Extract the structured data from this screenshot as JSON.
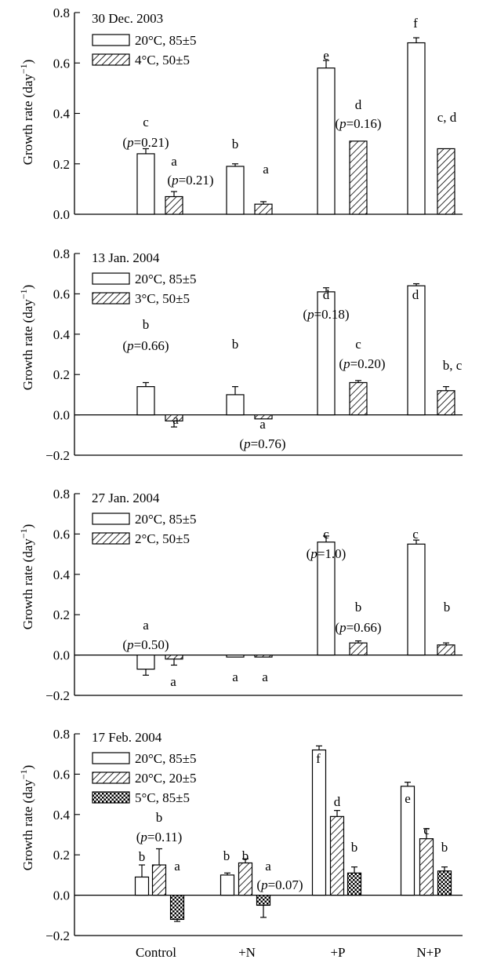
{
  "chart_data": [
    {
      "type": "bar",
      "title": "30 Dec. 2003",
      "ylabel": "Growth rate (day",
      "ylabel_sup": "−1",
      "ylabel_close": ")",
      "ylim": [
        0.0,
        0.8
      ],
      "yticks": [
        0.0,
        0.2,
        0.4,
        0.6,
        0.8
      ],
      "ytick_labels": [
        "0.0",
        "0.2",
        "0.4",
        "0.6",
        "0.8"
      ],
      "categories": [
        "Control",
        "+N",
        "+P",
        "N+P"
      ],
      "series": [
        {
          "name": "20°C, 85±5",
          "pattern": "open",
          "values": [
            0.24,
            0.19,
            0.58,
            0.68
          ],
          "errors": [
            0.02,
            0.01,
            0.03,
            0.02
          ],
          "letters": [
            "c",
            "b",
            "e",
            "f"
          ]
        },
        {
          "name": "4°C, 50±5",
          "pattern": "hatch",
          "values": [
            0.07,
            0.04,
            0.29,
            0.26
          ],
          "errors": [
            0.02,
            0.01,
            0.0,
            0.0
          ],
          "letters": [
            "a",
            "a",
            "d",
            "c, d"
          ]
        }
      ],
      "p_values": [
        "(p=0.21)",
        "(p=0.21)",
        "(p=0.16)"
      ]
    },
    {
      "type": "bar",
      "title": "13 Jan. 2004",
      "ylabel": "Growth rate (day",
      "ylabel_sup": "−1",
      "ylabel_close": ")",
      "ylim": [
        -0.2,
        0.8
      ],
      "yticks": [
        -0.2,
        0.0,
        0.2,
        0.4,
        0.6,
        0.8
      ],
      "ytick_labels": [
        "−0.2",
        "0.0",
        "0.2",
        "0.4",
        "0.6",
        "0.8"
      ],
      "categories": [
        "Control",
        "+N",
        "+P",
        "N+P"
      ],
      "series": [
        {
          "name": "20°C, 85±5",
          "pattern": "open",
          "values": [
            0.14,
            0.1,
            0.61,
            0.64
          ],
          "errors": [
            0.02,
            0.04,
            0.02,
            0.01
          ],
          "letters": [
            "b",
            "b",
            "d",
            "d"
          ]
        },
        {
          "name": "3°C, 50±5",
          "pattern": "hatch",
          "values": [
            -0.03,
            -0.02,
            0.16,
            0.12
          ],
          "errors": [
            0.03,
            0.0,
            0.01,
            0.02
          ],
          "letters": [
            "a",
            "a",
            "c",
            "b, c"
          ]
        }
      ],
      "p_values": [
        "(p=0.66)",
        "(p=0.76)",
        "(p=0.18)",
        "(p=0.20)"
      ]
    },
    {
      "type": "bar",
      "title": "27 Jan. 2004",
      "ylabel": "Growth rate (day",
      "ylabel_sup": "−1",
      "ylabel_close": ")",
      "ylim": [
        -0.2,
        0.8
      ],
      "yticks": [
        -0.2,
        0.0,
        0.2,
        0.4,
        0.6,
        0.8
      ],
      "ytick_labels": [
        "−0.2",
        "0.0",
        "0.2",
        "0.4",
        "0.6",
        "0.8"
      ],
      "categories": [
        "Control",
        "+N",
        "+P",
        "N+P"
      ],
      "series": [
        {
          "name": "20°C, 85±5",
          "pattern": "open",
          "values": [
            -0.07,
            -0.01,
            0.56,
            0.55
          ],
          "errors": [
            0.03,
            0.0,
            0.03,
            0.02
          ],
          "letters": [
            "a",
            "a",
            "c",
            "c"
          ]
        },
        {
          "name": "2°C, 50±5",
          "pattern": "hatch",
          "values": [
            -0.02,
            -0.01,
            0.06,
            0.05
          ],
          "errors": [
            0.03,
            0.0,
            0.01,
            0.01
          ],
          "letters": [
            "a",
            "a",
            "b",
            "b"
          ]
        }
      ],
      "p_values": [
        "(p=0.50)",
        "(p=1.0)",
        "(p=0.66)"
      ]
    },
    {
      "type": "bar",
      "title": "17 Feb. 2004",
      "ylabel": "Growth rate (day",
      "ylabel_sup": "−1",
      "ylabel_close": ")",
      "ylim": [
        -0.2,
        0.8
      ],
      "yticks": [
        -0.2,
        0.0,
        0.2,
        0.4,
        0.6,
        0.8
      ],
      "ytick_labels": [
        "−0.2",
        "0.0",
        "0.2",
        "0.4",
        "0.6",
        "0.8"
      ],
      "categories": [
        "Control",
        "+N",
        "+P",
        "N+P"
      ],
      "series": [
        {
          "name": "20°C, 85±5",
          "pattern": "open",
          "values": [
            0.09,
            0.1,
            0.72,
            0.54
          ],
          "errors": [
            0.06,
            0.01,
            0.02,
            0.02
          ],
          "letters": [
            "b",
            "b",
            "f",
            "e"
          ]
        },
        {
          "name": "20°C, 20±5",
          "pattern": "hatch",
          "values": [
            0.15,
            0.16,
            0.39,
            0.28
          ],
          "errors": [
            0.08,
            0.02,
            0.03,
            0.05
          ],
          "letters": [
            "b",
            "b",
            "d",
            "c"
          ]
        },
        {
          "name": "5°C, 85±5",
          "pattern": "cross",
          "values": [
            -0.12,
            -0.05,
            0.11,
            0.12
          ],
          "errors": [
            0.01,
            0.06,
            0.03,
            0.02
          ],
          "letters": [
            "a",
            "a",
            "b",
            "b"
          ]
        }
      ],
      "p_values": [
        "(p=0.11)",
        "(p=0.07)"
      ]
    }
  ]
}
